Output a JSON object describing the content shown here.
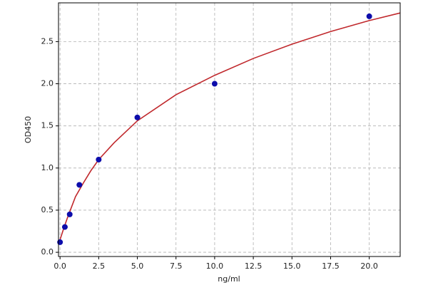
{
  "chart_data": {
    "type": "scatter",
    "x_label": "ng/ml",
    "y_label": "OD450",
    "points": {
      "color": "#0d0dab",
      "x": [
        0,
        0.3125,
        0.625,
        1.25,
        2.5,
        5,
        10,
        20
      ],
      "y": [
        0.12,
        0.3,
        0.45,
        0.8,
        1.1,
        1.6,
        2.0,
        2.8
      ]
    },
    "fit": {
      "color": "#c0282c",
      "x": [
        0,
        0.25,
        0.5,
        1,
        1.5,
        2,
        2.5,
        3.5,
        5,
        7.5,
        10,
        12.5,
        15,
        17.5,
        20,
        22
      ],
      "y": [
        0.15,
        0.29,
        0.42,
        0.66,
        0.82,
        0.97,
        1.1,
        1.3,
        1.56,
        1.87,
        2.1,
        2.3,
        2.47,
        2.62,
        2.75,
        2.84
      ]
    },
    "xlim": [
      -0.1,
      22.0
    ],
    "ylim": [
      -0.05,
      2.96
    ],
    "xticks": [
      {
        "value": 0,
        "label": "0.0"
      },
      2.5,
      {
        "value": 5,
        "label": "5.0"
      },
      7.5,
      {
        "value": 10,
        "label": "10.0"
      },
      12.5,
      {
        "value": 15,
        "label": "15.0"
      },
      17.5,
      {
        "value": 20,
        "label": "20.0"
      }
    ],
    "yticks": [
      {
        "value": 0,
        "label": "0.0"
      },
      0.5,
      {
        "value": 1,
        "label": "1.0"
      },
      1.5,
      {
        "value": 2,
        "label": "2.0"
      },
      2.5
    ],
    "grid": true
  }
}
